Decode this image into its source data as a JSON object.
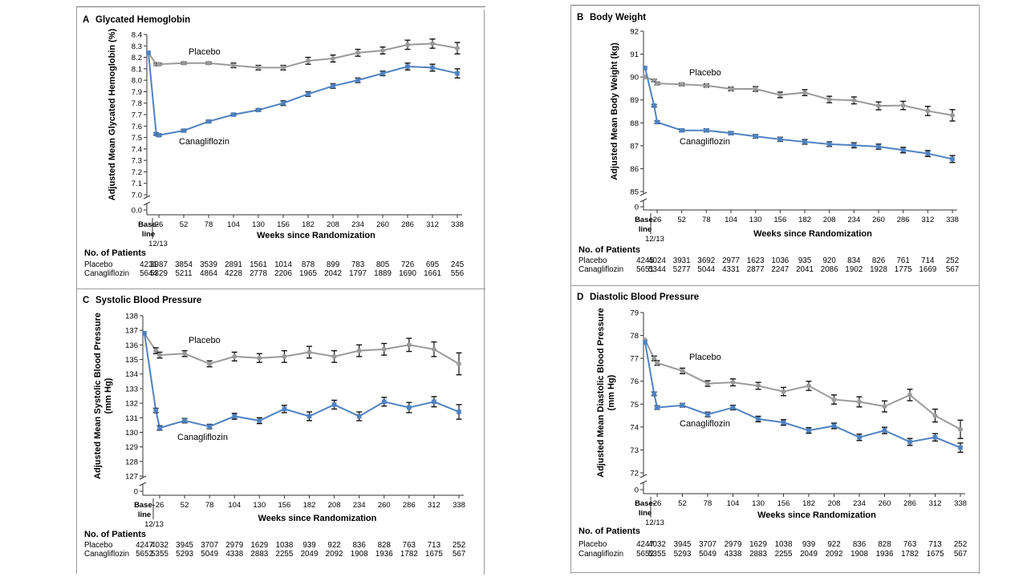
{
  "common": {
    "xlabel": "Weeks since Randomization",
    "baseline_label_1": "Base-",
    "baseline_label_2": "line",
    "baseline_sub": "12/13",
    "patients_heading": "No. of Patients",
    "placebo_label": "Placebo",
    "cana_label": "Canagliflozin",
    "x_ticks": [
      "26",
      "52",
      "78",
      "104",
      "130",
      "156",
      "182",
      "208",
      "234",
      "260",
      "286",
      "312",
      "338"
    ],
    "colors": {
      "placebo": "#9a9a9a",
      "cana": "#4f82c1",
      "axis": "#333333",
      "border": "#888888"
    }
  },
  "chart_data": [
    {
      "panel": "A",
      "type": "line",
      "letter": "A",
      "title": "Glycated Hemoglobin",
      "ylabel": "Adjusted Mean Glycated Hemoglobin (%)",
      "ylim": [
        7.0,
        8.4
      ],
      "y_ticks": [
        "8.4",
        "8.3",
        "8.2",
        "8.1",
        "8.0",
        "7.9",
        "7.8",
        "7.7",
        "7.6",
        "7.5",
        "7.4",
        "7.3",
        "7.2",
        "7.1",
        "7.0"
      ],
      "y_zero": "0.0",
      "x": [
        0,
        12,
        26,
        52,
        78,
        104,
        130,
        156,
        182,
        208,
        234,
        260,
        286,
        312,
        338
      ],
      "series": [
        {
          "name": "Placebo",
          "values": [
            8.24,
            8.14,
            8.14,
            8.15,
            8.15,
            8.13,
            8.11,
            8.11,
            8.17,
            8.19,
            8.24,
            8.26,
            8.31,
            8.32,
            8.28
          ],
          "err": [
            0.01,
            0.01,
            0.01,
            0.01,
            0.01,
            0.02,
            0.02,
            0.02,
            0.03,
            0.03,
            0.03,
            0.03,
            0.04,
            0.04,
            0.05
          ]
        },
        {
          "name": "Canagliflozin",
          "values": [
            8.24,
            7.53,
            7.52,
            7.56,
            7.64,
            7.7,
            7.74,
            7.8,
            7.88,
            7.95,
            8.0,
            8.06,
            8.12,
            8.11,
            8.06
          ],
          "err": [
            0.01,
            0.01,
            0.01,
            0.01,
            0.01,
            0.01,
            0.01,
            0.02,
            0.02,
            0.02,
            0.02,
            0.02,
            0.03,
            0.03,
            0.04
          ]
        }
      ],
      "patients": {
        "placebo": [
          "4231",
          "3987",
          "3854",
          "3539",
          "2891",
          "1561",
          "1014",
          "878",
          "899",
          "783",
          "805",
          "726",
          "695",
          "245"
        ],
        "cana": [
          "5644",
          "5329",
          "5211",
          "4864",
          "4228",
          "2778",
          "2206",
          "1965",
          "2042",
          "1797",
          "1889",
          "1690",
          "1661",
          "556"
        ]
      }
    },
    {
      "panel": "B",
      "type": "line",
      "letter": "B",
      "title": "Body Weight",
      "ylabel": "Adjusted Mean Body Weight (kg)",
      "ylim": [
        85,
        92
      ],
      "y_ticks": [
        "92",
        "91",
        "90",
        "89",
        "88",
        "87",
        "86",
        "85"
      ],
      "y_zero": "0",
      "x": [
        0,
        12,
        26,
        52,
        78,
        104,
        130,
        156,
        182,
        208,
        234,
        260,
        286,
        312,
        338
      ],
      "series": [
        {
          "name": "Placebo",
          "values": [
            90.0,
            89.85,
            89.72,
            89.68,
            89.63,
            89.48,
            89.48,
            89.22,
            89.32,
            89.02,
            88.98,
            88.74,
            88.76,
            88.52,
            88.33
          ],
          "err": [
            0.05,
            0.05,
            0.06,
            0.06,
            0.07,
            0.08,
            0.1,
            0.12,
            0.13,
            0.14,
            0.15,
            0.17,
            0.18,
            0.2,
            0.25
          ]
        },
        {
          "name": "Canagliflozin",
          "values": [
            90.4,
            88.75,
            88.03,
            87.67,
            87.67,
            87.55,
            87.41,
            87.28,
            87.17,
            87.07,
            87.02,
            86.96,
            86.81,
            86.66,
            86.42
          ],
          "err": [
            0.05,
            0.05,
            0.06,
            0.06,
            0.07,
            0.07,
            0.08,
            0.09,
            0.1,
            0.1,
            0.11,
            0.11,
            0.12,
            0.13,
            0.15
          ]
        }
      ],
      "patients": {
        "placebo": [
          "4245",
          "4024",
          "3931",
          "3692",
          "2977",
          "1623",
          "1036",
          "935",
          "920",
          "834",
          "826",
          "761",
          "714",
          "252"
        ],
        "cana": [
          "5651",
          "5344",
          "5277",
          "5044",
          "4331",
          "2877",
          "2247",
          "2041",
          "2086",
          "1902",
          "1928",
          "1775",
          "1669",
          "567"
        ]
      }
    },
    {
      "panel": "C",
      "type": "line",
      "letter": "C",
      "title": "Systolic Blood Pressure",
      "ylabel": "Adjusted Mean Systolic Blood Pressure",
      "ylabel2": "(mm Hg)",
      "ylim": [
        127,
        138
      ],
      "y_ticks": [
        "138",
        "137",
        "136",
        "135",
        "134",
        "133",
        "132",
        "131",
        "130",
        "129",
        "128",
        "127"
      ],
      "y_zero": "0",
      "x": [
        0,
        12,
        26,
        52,
        78,
        104,
        130,
        156,
        182,
        208,
        234,
        260,
        286,
        312,
        338
      ],
      "series": [
        {
          "name": "Placebo",
          "values": [
            136.8,
            135.6,
            135.3,
            135.4,
            134.7,
            135.2,
            135.1,
            135.2,
            135.5,
            135.2,
            135.6,
            135.7,
            136.0,
            135.7,
            134.7
          ],
          "err": [
            0.1,
            0.2,
            0.2,
            0.2,
            0.2,
            0.3,
            0.3,
            0.4,
            0.4,
            0.4,
            0.4,
            0.4,
            0.45,
            0.5,
            0.75
          ]
        },
        {
          "name": "Canagliflozin",
          "values": [
            136.8,
            131.5,
            130.3,
            130.8,
            130.4,
            131.1,
            130.8,
            131.6,
            131.1,
            131.9,
            131.1,
            132.1,
            131.7,
            132.1,
            131.4
          ],
          "err": [
            0.1,
            0.15,
            0.15,
            0.15,
            0.15,
            0.2,
            0.2,
            0.25,
            0.3,
            0.3,
            0.3,
            0.3,
            0.35,
            0.35,
            0.5
          ]
        }
      ],
      "patients": {
        "placebo": [
          "4247",
          "4032",
          "3945",
          "3707",
          "2979",
          "1629",
          "1038",
          "939",
          "922",
          "836",
          "828",
          "763",
          "713",
          "252"
        ],
        "cana": [
          "5652",
          "5355",
          "5293",
          "5049",
          "4338",
          "2883",
          "2255",
          "2049",
          "2092",
          "1908",
          "1936",
          "1782",
          "1675",
          "567"
        ]
      }
    },
    {
      "panel": "D",
      "type": "line",
      "letter": "D",
      "title": "Diastolic Blood Pressure",
      "ylabel": "Adjusted Mean Diastolic Blood Pressure",
      "ylabel2": "(mm Hg)",
      "ylim": [
        72,
        79
      ],
      "y_ticks": [
        "79",
        "78",
        "77",
        "76",
        "75",
        "74",
        "73",
        "72"
      ],
      "y_zero": "0",
      "x": [
        0,
        12,
        26,
        52,
        78,
        104,
        130,
        156,
        182,
        208,
        234,
        260,
        286,
        312,
        338
      ],
      "series": [
        {
          "name": "Placebo",
          "values": [
            77.8,
            77.0,
            76.8,
            76.45,
            75.9,
            75.95,
            75.8,
            75.55,
            75.8,
            75.2,
            75.1,
            74.9,
            75.4,
            74.5,
            73.9
          ],
          "err": [
            0.05,
            0.1,
            0.1,
            0.12,
            0.12,
            0.15,
            0.15,
            0.18,
            0.2,
            0.2,
            0.22,
            0.24,
            0.25,
            0.28,
            0.4
          ]
        },
        {
          "name": "Canagliflozin",
          "values": [
            77.7,
            75.45,
            74.85,
            74.95,
            74.55,
            74.85,
            74.35,
            74.2,
            73.85,
            74.05,
            73.55,
            73.85,
            73.35,
            73.55,
            73.1
          ],
          "err": [
            0.05,
            0.08,
            0.08,
            0.08,
            0.1,
            0.1,
            0.12,
            0.12,
            0.12,
            0.12,
            0.14,
            0.14,
            0.15,
            0.16,
            0.2
          ]
        }
      ],
      "patients": {
        "placebo": [
          "4247",
          "4032",
          "3945",
          "3707",
          "2979",
          "1629",
          "1038",
          "939",
          "922",
          "836",
          "828",
          "763",
          "713",
          "252"
        ],
        "cana": [
          "5652",
          "5355",
          "5293",
          "5049",
          "4338",
          "2883",
          "2255",
          "2049",
          "2092",
          "1908",
          "1936",
          "1782",
          "1675",
          "567"
        ]
      }
    }
  ]
}
